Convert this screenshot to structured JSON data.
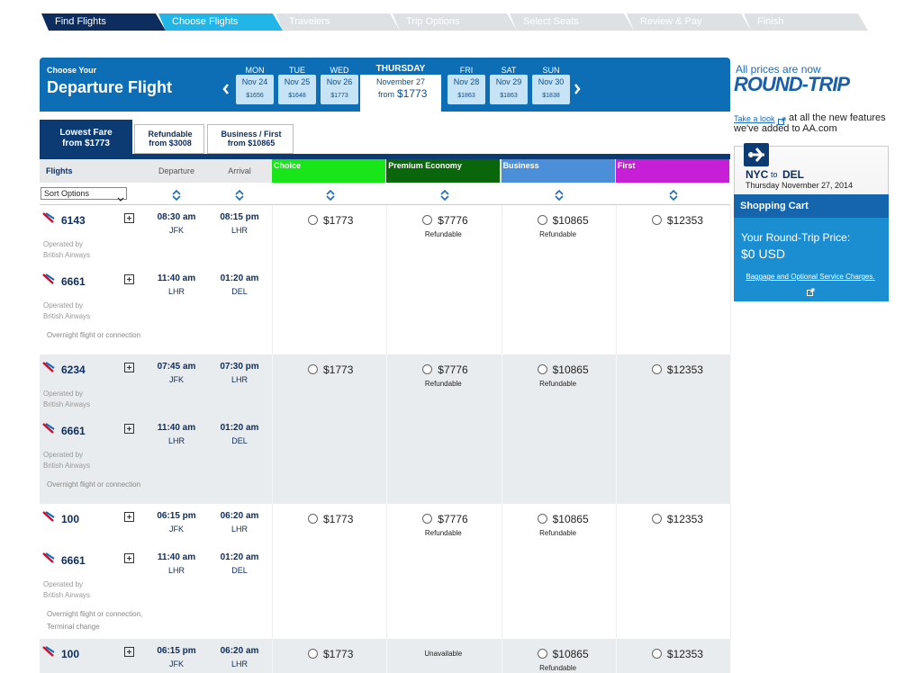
{
  "steps": [
    "Find Flights",
    "Choose Flights",
    "Travelers",
    "Trip Options",
    "Select Seats",
    "Review & Pay",
    "Finish"
  ],
  "header": {
    "choose": "Choose Your",
    "title": "Departure Flight"
  },
  "dates": [
    {
      "day": "MON",
      "date": "Nov 24",
      "price": "$1656"
    },
    {
      "day": "TUE",
      "date": "Nov 25",
      "price": "$1648"
    },
    {
      "day": "WED",
      "date": "Nov 26",
      "price": "$1773"
    },
    {
      "day": "THURSDAY",
      "date": "November 27",
      "from": "from",
      "price": "$1773"
    },
    {
      "day": "FRI",
      "date": "Nov 28",
      "price": "$1863"
    },
    {
      "day": "SAT",
      "date": "Nov 29",
      "price": "$1863"
    },
    {
      "day": "SUN",
      "date": "Nov 30",
      "price": "$1838"
    }
  ],
  "tabs": [
    {
      "label": "Lowest Fare",
      "sub": "from $1773"
    },
    {
      "label": "Refundable",
      "sub": "from $3008"
    },
    {
      "label": "Business / First",
      "sub": "from $10865"
    }
  ],
  "columns": {
    "flights": "Flights",
    "departure": "Departure",
    "arrival": "Arrival",
    "sort": "Sort Options",
    "cabins": [
      {
        "name": "Choice",
        "color": "#19e619"
      },
      {
        "name": "Premium Economy",
        "color": "#0a660a"
      },
      {
        "name": "Business",
        "color": "#4a8fd8"
      },
      {
        "name": "First",
        "color": "#c61fd6"
      }
    ]
  },
  "itineraries": [
    {
      "segments": [
        {
          "flight": "6143",
          "dep_time": "08:30 am",
          "dep_airport": "JFK",
          "arr_time": "08:15 pm",
          "arr_airport": "LHR",
          "operated": "Operated by",
          "carrier": "British Airways"
        },
        {
          "flight": "6661",
          "dep_time": "11:40 am",
          "dep_airport": "LHR",
          "arr_time": "01:20 am",
          "arr_airport": "DEL",
          "operated": "Operated by",
          "carrier": "British Airways"
        }
      ],
      "note": [
        "Overnight flight or connection"
      ],
      "fares": [
        {
          "price": "$1773"
        },
        {
          "price": "$7776",
          "note": "Refundable"
        },
        {
          "price": "$10865",
          "note": "Refundable"
        },
        {
          "price": "$12353"
        }
      ]
    },
    {
      "segments": [
        {
          "flight": "6234",
          "dep_time": "07:45 am",
          "dep_airport": "JFK",
          "arr_time": "07:30 pm",
          "arr_airport": "LHR",
          "operated": "Operated by",
          "carrier": "British Airways"
        },
        {
          "flight": "6661",
          "dep_time": "11:40 am",
          "dep_airport": "LHR",
          "arr_time": "01:20 am",
          "arr_airport": "DEL",
          "operated": "Operated by",
          "carrier": "British Airways"
        }
      ],
      "note": [
        "Overnight flight or connection"
      ],
      "fares": [
        {
          "price": "$1773"
        },
        {
          "price": "$7776",
          "note": "Refundable"
        },
        {
          "price": "$10865",
          "note": "Refundable"
        },
        {
          "price": "$12353"
        }
      ]
    },
    {
      "segments": [
        {
          "flight": "100",
          "dep_time": "06:15 pm",
          "dep_airport": "JFK",
          "arr_time": "06:20 am",
          "arr_airport": "LHR"
        },
        {
          "flight": "6661",
          "dep_time": "11:40 am",
          "dep_airport": "LHR",
          "arr_time": "01:20 am",
          "arr_airport": "DEL",
          "operated": "Operated by",
          "carrier": "British Airways"
        }
      ],
      "note": [
        "Overnight flight or connection,",
        "Terminal change"
      ],
      "fares": [
        {
          "price": "$1773"
        },
        {
          "price": "$7776",
          "note": "Refundable"
        },
        {
          "price": "$10865",
          "note": "Refundable"
        },
        {
          "price": "$12353"
        }
      ]
    },
    {
      "segments": [
        {
          "flight": "100",
          "dep_time": "06:15 pm",
          "dep_airport": "JFK",
          "arr_time": "06:20 am",
          "arr_airport": "LHR"
        }
      ],
      "fares": [
        {
          "price": "$1773"
        },
        {
          "status": "Unavailable"
        },
        {
          "price": "$10865",
          "note": "Refundable"
        },
        {
          "price": "$12353"
        }
      ]
    }
  ],
  "sidebar": {
    "prices_now": "All prices are now",
    "round_trip": "ROUND-TRIP",
    "take_look": "Take a look",
    "promo_1": "at all the new features",
    "promo_2": "we've added to AA.com",
    "from": "NYC",
    "to": "to",
    "dest": "DEL",
    "date": "Thursday November 27, 2014",
    "cart": "Shopping Cart",
    "your_price": "Your Round-Trip Price:",
    "price": "$0 USD",
    "baggage": "Baggage and Optional Service Charges."
  }
}
